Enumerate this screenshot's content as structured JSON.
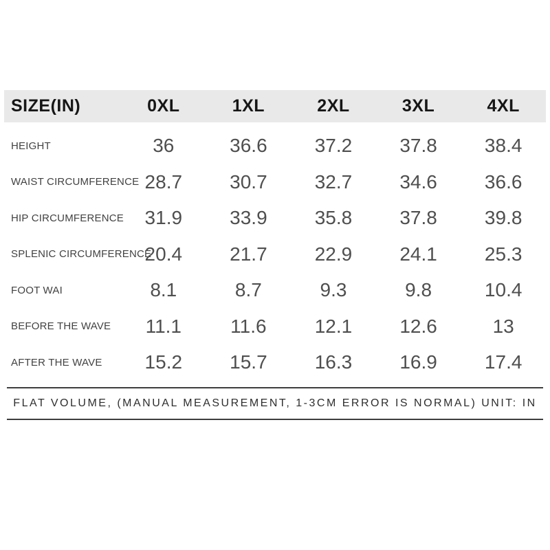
{
  "table": {
    "header": {
      "label": "SIZE(IN)",
      "sizes": [
        "0XL",
        "1XL",
        "2XL",
        "3XL",
        "4XL"
      ]
    },
    "rows": [
      {
        "label": "HEIGHT",
        "values": [
          "36",
          "36.6",
          "37.2",
          "37.8",
          "38.4"
        ]
      },
      {
        "label": "WAIST CIRCUMFERENCE",
        "values": [
          "28.7",
          "30.7",
          "32.7",
          "34.6",
          "36.6"
        ]
      },
      {
        "label": "HIP CIRCUMFERENCE",
        "values": [
          "31.9",
          "33.9",
          "35.8",
          "37.8",
          "39.8"
        ]
      },
      {
        "label": "SPLENIC CIRCUMFERENCE",
        "values": [
          "20.4",
          "21.7",
          "22.9",
          "24.1",
          "25.3"
        ]
      },
      {
        "label": "FOOT WAI",
        "values": [
          "8.1",
          "8.7",
          "9.3",
          "9.8",
          "10.4"
        ]
      },
      {
        "label": "BEFORE THE WAVE",
        "values": [
          "11.1",
          "11.6",
          "12.1",
          "12.6",
          "13"
        ]
      },
      {
        "label": "AFTER THE WAVE",
        "values": [
          "15.2",
          "15.7",
          "16.3",
          "16.9",
          "17.4"
        ]
      }
    ]
  },
  "footer": {
    "note": "FLAT VOLUME, (MANUAL MEASUREMENT, 1-3CM ERROR IS NORMAL) UNIT: IN"
  },
  "colors": {
    "header_bg": "#e9e9e9",
    "header_text": "#161616",
    "label_text": "#424242",
    "value_text": "#4f4f4f",
    "rule_line": "#3d3d3d",
    "background": "#ffffff"
  },
  "chart_data": {
    "type": "table",
    "title": "SIZE(IN)",
    "columns": [
      "SIZE(IN)",
      "0XL",
      "1XL",
      "2XL",
      "3XL",
      "4XL"
    ],
    "rows": [
      [
        "HEIGHT",
        36,
        36.6,
        37.2,
        37.8,
        38.4
      ],
      [
        "WAIST CIRCUMFERENCE",
        28.7,
        30.7,
        32.7,
        34.6,
        36.6
      ],
      [
        "HIP CIRCUMFERENCE",
        31.9,
        33.9,
        35.8,
        37.8,
        39.8
      ],
      [
        "SPLENIC CIRCUMFERENCE",
        20.4,
        21.7,
        22.9,
        24.1,
        25.3
      ],
      [
        "FOOT WAI",
        8.1,
        8.7,
        9.3,
        9.8,
        10.4
      ],
      [
        "BEFORE THE WAVE",
        11.1,
        11.6,
        12.1,
        12.6,
        13
      ],
      [
        "AFTER THE WAVE",
        15.2,
        15.7,
        16.3,
        16.9,
        17.4
      ]
    ],
    "footnote": "FLAT VOLUME, (MANUAL MEASUREMENT, 1-3CM ERROR IS NORMAL) UNIT: IN",
    "unit": "IN",
    "grid": false,
    "legend": "none"
  }
}
